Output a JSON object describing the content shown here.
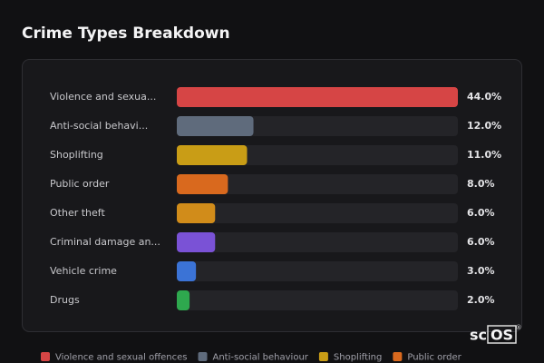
{
  "chart_data": {
    "type": "bar",
    "orientation": "horizontal",
    "title": "Crime Types Breakdown",
    "categories": [
      "Violence and sexua...",
      "Anti-social behavi...",
      "Shoplifting",
      "Public order",
      "Other theft",
      "Criminal damage an...",
      "Vehicle crime",
      "Drugs"
    ],
    "values": [
      44,
      12,
      11,
      8,
      6,
      6,
      3,
      2
    ],
    "value_labels": [
      "44.0%",
      "12.0%",
      "11.0%",
      "8.0%",
      "6.0%",
      "6.0%",
      "3.0%",
      "2.0%"
    ],
    "colors": [
      "#d64545",
      "#5f6b7c",
      "#c99d16",
      "#d9691e",
      "#d18c1a",
      "#7a52d6",
      "#3b73d6",
      "#2ea84e"
    ],
    "legend": [
      "Violence and sexual offences",
      "Anti-social behaviour",
      "Shoplifting",
      "Public order"
    ],
    "watermark": {
      "prefix": "sc",
      "boxed": "OS",
      "mark": "®"
    }
  }
}
